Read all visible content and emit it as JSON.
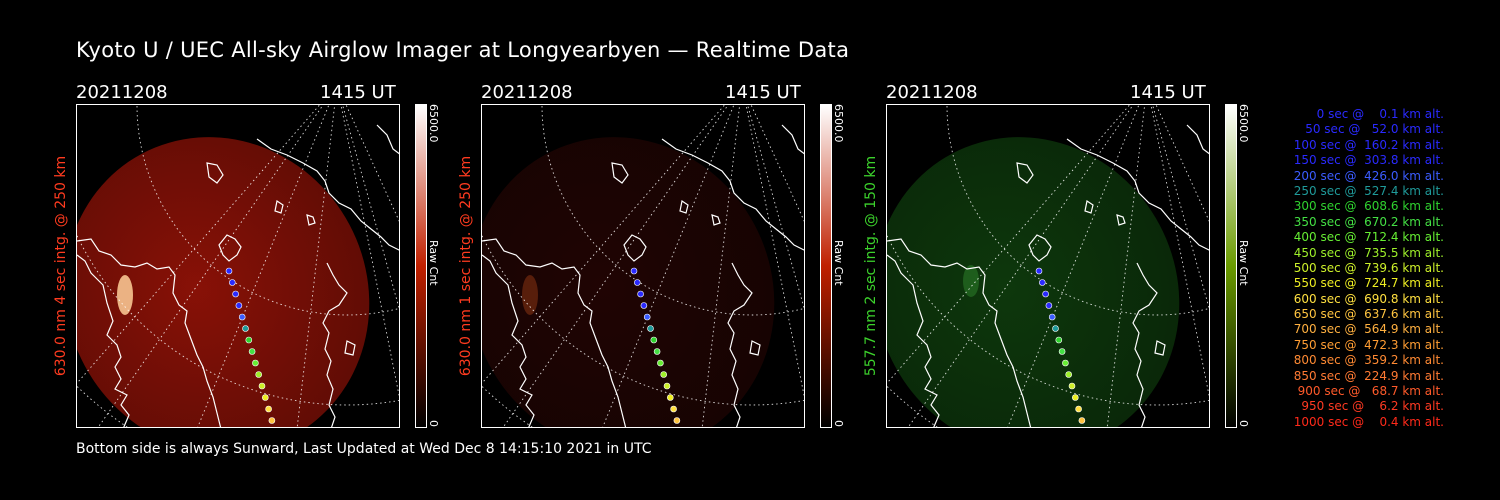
{
  "title": "Kyoto U / UEC All-sky Airglow Imager at Longyearbyen — Realtime Data",
  "footer": "Bottom side is always Sunward, Last Updated at Wed Dec  8 14:15:10 2021 in UTC",
  "panels": [
    {
      "date": "20211208",
      "time": "1415 UT",
      "ylabel": "630.0 nm 4 sec intg. @ 250 km",
      "label_color": "#ff3b1f",
      "colorbar": {
        "max": "6500.0",
        "min": "0",
        "label": "Raw Cnt",
        "from": "#000000",
        "mid": "#c02000",
        "to": "#ffffff"
      },
      "glow_color": "#a01408",
      "glow_intensity": 0.85
    },
    {
      "date": "20211208",
      "time": "1415 UT",
      "ylabel": "630.0 nm 1 sec intg. @ 250 km",
      "label_color": "#ff3b1f",
      "colorbar": {
        "max": "6500.0",
        "min": "0",
        "label": "Raw Cnt",
        "from": "#000000",
        "mid": "#c02000",
        "to": "#ffffff"
      },
      "glow_color": "#3a0806",
      "glow_intensity": 0.55
    },
    {
      "date": "20211208",
      "time": "1415 UT",
      "ylabel": "557.7 nm 2 sec intg. @ 150 km",
      "label_color": "#3cd22c",
      "colorbar": {
        "max": "6500.0",
        "min": "0",
        "label": "Raw Cnt",
        "from": "#000000",
        "mid": "#6a9a00",
        "to": "#ffffff"
      },
      "glow_color": "#124a10",
      "glow_intensity": 0.75
    }
  ],
  "legend": [
    {
      "text": "   0 sec @    0.1 km alt.",
      "color": "#2a2aff"
    },
    {
      "text": "  50 sec @   52.0 km alt.",
      "color": "#2a2aff"
    },
    {
      "text": " 100 sec @  160.2 km alt.",
      "color": "#2a2aff"
    },
    {
      "text": " 150 sec @  303.8 km alt.",
      "color": "#2a2aff"
    },
    {
      "text": " 200 sec @  426.0 km alt.",
      "color": "#3b5cff"
    },
    {
      "text": " 250 sec @  527.4 km alt.",
      "color": "#1f9a9a"
    },
    {
      "text": " 300 sec @  608.6 km alt.",
      "color": "#2fd22f"
    },
    {
      "text": " 350 sec @  670.2 km alt.",
      "color": "#44e044"
    },
    {
      "text": " 400 sec @  712.4 km alt.",
      "color": "#66ee33"
    },
    {
      "text": " 450 sec @  735.5 km alt.",
      "color": "#9ef02a"
    },
    {
      "text": " 500 sec @  739.6 km alt.",
      "color": "#cdf02a"
    },
    {
      "text": " 550 sec @  724.7 km alt.",
      "color": "#eeee22"
    },
    {
      "text": " 600 sec @  690.8 km alt.",
      "color": "#ffe040"
    },
    {
      "text": " 650 sec @  637.6 km alt.",
      "color": "#ffc440"
    },
    {
      "text": " 700 sec @  564.9 km alt.",
      "color": "#ffb040"
    },
    {
      "text": " 750 sec @  472.3 km alt.",
      "color": "#ff9d33"
    },
    {
      "text": " 800 sec @  359.2 km alt.",
      "color": "#ff8a33"
    },
    {
      "text": " 850 sec @  224.9 km alt.",
      "color": "#ff7a33"
    },
    {
      "text": " 900 sec @   68.7 km alt.",
      "color": "#ff5a2a"
    },
    {
      "text": " 950 sec @    6.2 km alt.",
      "color": "#ff3a22"
    },
    {
      "text": "1000 sec @    0.4 km alt.",
      "color": "#ff2a1a"
    }
  ]
}
